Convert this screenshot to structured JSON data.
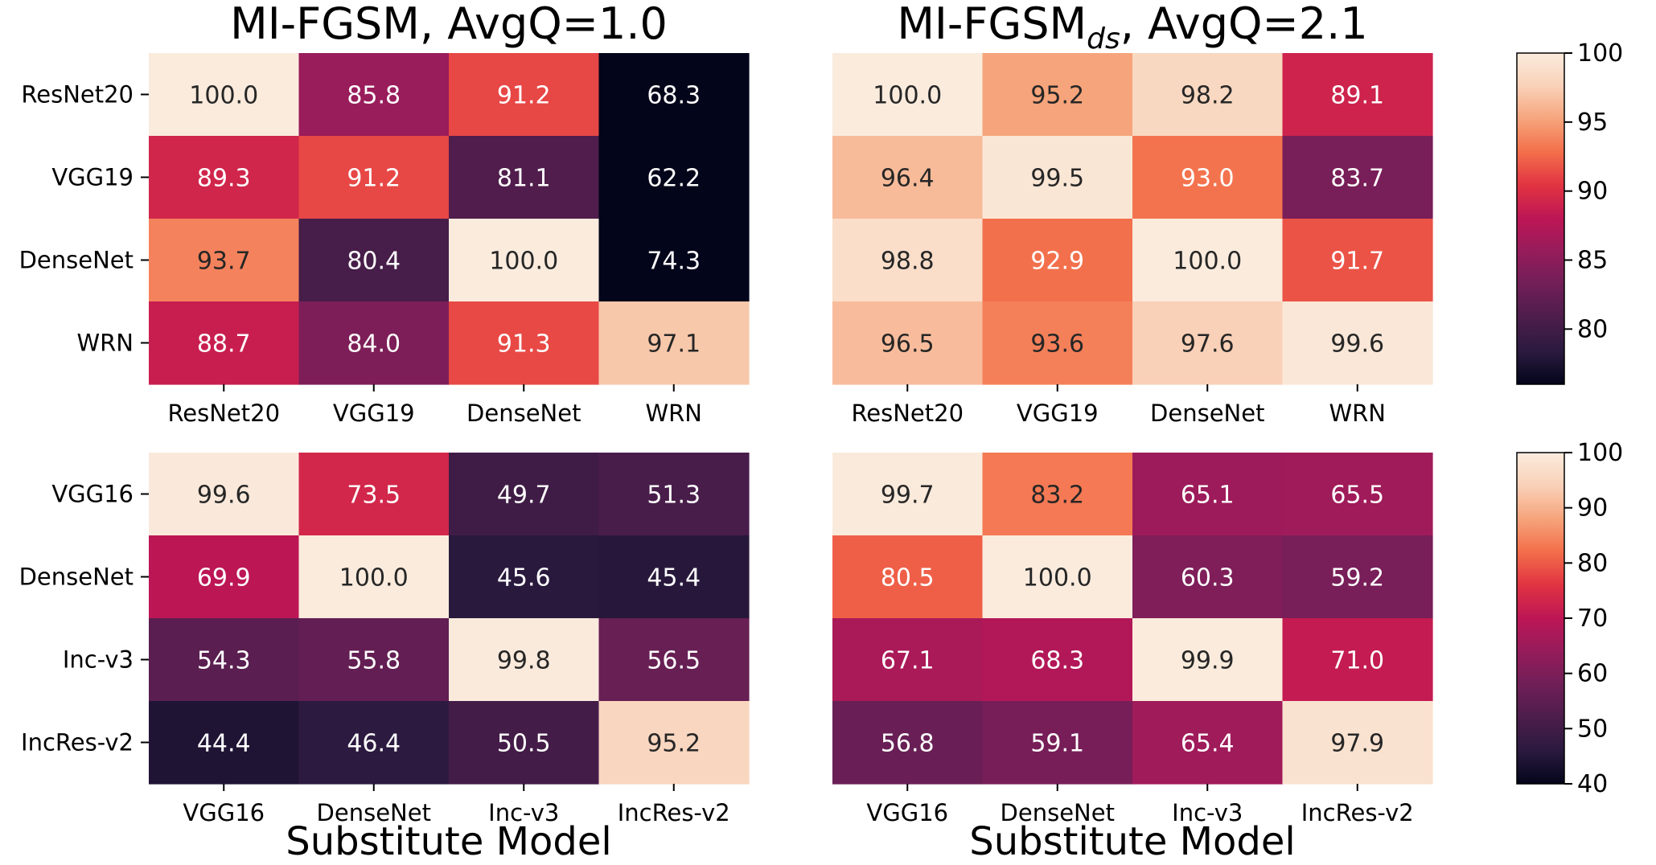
{
  "chart_data": [
    {
      "type": "heatmap",
      "title": "MI-FGSM, AvgQ=1.0",
      "x": [
        "ResNet20",
        "VGG19",
        "DenseNet",
        "WRN"
      ],
      "y": [
        "ResNet20",
        "VGG19",
        "DenseNet",
        "WRN"
      ],
      "values": [
        [
          100.0,
          85.8,
          91.2,
          68.3
        ],
        [
          89.3,
          91.2,
          81.1,
          62.2
        ],
        [
          93.7,
          80.4,
          100.0,
          74.3
        ],
        [
          88.7,
          84.0,
          91.3,
          97.1
        ]
      ],
      "value_labels": [
        [
          "100.0",
          "85.8",
          "91.2",
          "68.3"
        ],
        [
          "89.3",
          "91.2",
          "81.1",
          "62.2"
        ],
        [
          "93.7",
          "80.4",
          "100.0",
          "74.3"
        ],
        [
          "88.7",
          "84.0",
          "91.3",
          "97.1"
        ]
      ],
      "xlabel": "",
      "colorbar": "shared-top"
    },
    {
      "type": "heatmap",
      "title": "MI-FGSM",
      "title_subscript": "ds",
      "title_suffix": ", AvgQ=2.1",
      "x": [
        "ResNet20",
        "VGG19",
        "DenseNet",
        "WRN"
      ],
      "y": [
        "ResNet20",
        "VGG19",
        "DenseNet",
        "WRN"
      ],
      "values": [
        [
          100.0,
          95.2,
          98.2,
          89.1
        ],
        [
          96.4,
          99.5,
          93.0,
          83.7
        ],
        [
          98.8,
          92.9,
          100.0,
          91.7
        ],
        [
          96.5,
          93.6,
          97.6,
          99.6
        ]
      ],
      "value_labels": [
        [
          "100.0",
          "95.2",
          "98.2",
          "89.1"
        ],
        [
          "96.4",
          "99.5",
          "93.0",
          "83.7"
        ],
        [
          "98.8",
          "92.9",
          "100.0",
          "91.7"
        ],
        [
          "96.5",
          "93.6",
          "97.6",
          "99.6"
        ]
      ],
      "xlabel": "",
      "colorbar": "shared-top"
    },
    {
      "type": "heatmap",
      "title": "",
      "x": [
        "VGG16",
        "DenseNet",
        "Inc-v3",
        "IncRes-v2"
      ],
      "y": [
        "VGG16",
        "DenseNet",
        "Inc-v3",
        "IncRes-v2"
      ],
      "values": [
        [
          99.6,
          73.5,
          49.7,
          51.3
        ],
        [
          69.9,
          100.0,
          45.6,
          45.4
        ],
        [
          54.3,
          55.8,
          99.8,
          56.5
        ],
        [
          44.4,
          46.4,
          50.5,
          95.2
        ]
      ],
      "value_labels": [
        [
          "99.6",
          "73.5",
          "49.7",
          "51.3"
        ],
        [
          "69.9",
          "100.0",
          "45.6",
          "45.4"
        ],
        [
          "54.3",
          "55.8",
          "99.8",
          "56.5"
        ],
        [
          "44.4",
          "46.4",
          "50.5",
          "95.2"
        ]
      ],
      "xlabel": "Substitute Model",
      "colorbar": "shared-bottom"
    },
    {
      "type": "heatmap",
      "title": "",
      "x": [
        "VGG16",
        "DenseNet",
        "Inc-v3",
        "IncRes-v2"
      ],
      "y": [
        "VGG16",
        "DenseNet",
        "Inc-v3",
        "IncRes-v2"
      ],
      "values": [
        [
          99.7,
          83.2,
          65.1,
          65.5
        ],
        [
          80.5,
          100.0,
          60.3,
          59.2
        ],
        [
          67.1,
          68.3,
          99.9,
          71.0
        ],
        [
          56.8,
          59.1,
          65.4,
          97.9
        ]
      ],
      "value_labels": [
        [
          "99.7",
          "83.2",
          "65.1",
          "65.5"
        ],
        [
          "80.5",
          "100.0",
          "60.3",
          "59.2"
        ],
        [
          "67.1",
          "68.3",
          "99.9",
          "71.0"
        ],
        [
          "56.8",
          "59.1",
          "65.4",
          "97.9"
        ]
      ],
      "xlabel": "Substitute Model",
      "colorbar": "shared-bottom"
    }
  ],
  "colorbars": {
    "top": {
      "range": [
        76,
        100
      ],
      "ticks": [
        100,
        95,
        90,
        85,
        80
      ],
      "tick_labels": [
        "100",
        "95",
        "90",
        "85",
        "80"
      ]
    },
    "bottom": {
      "range": [
        40,
        100
      ],
      "ticks": [
        100,
        90,
        80,
        70,
        60,
        50,
        40
      ],
      "tick_labels": [
        "100",
        "90",
        "80",
        "70",
        "60",
        "50",
        "40"
      ]
    }
  },
  "colormap": "rocket",
  "colormap_stops": [
    "#03051a",
    "#2b1a3f",
    "#4c1d4b",
    "#701f57",
    "#961c5b",
    "#bd1655",
    "#e13342",
    "#f36e4a",
    "#f6a47b",
    "#f9d1b8",
    "#faebdd"
  ],
  "annotation_colors": {
    "on_dark": "#ffffff",
    "on_light": "#262626"
  }
}
